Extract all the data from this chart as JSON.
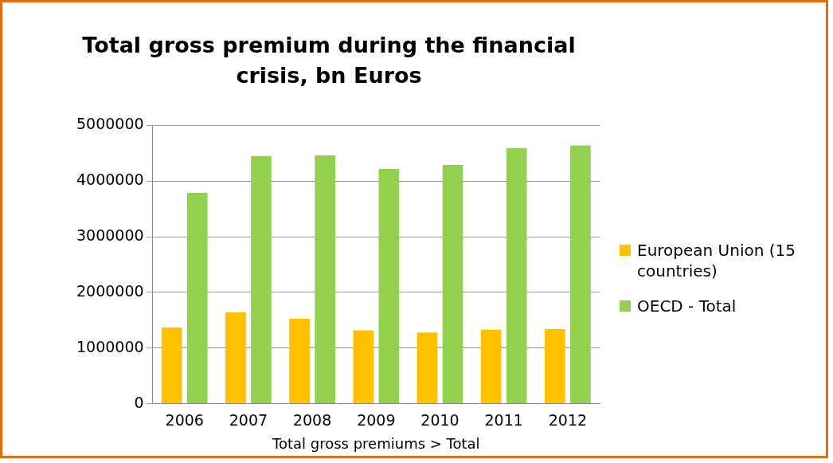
{
  "chart_data": {
    "type": "bar",
    "title": "Total gross premium during the financial crisis, bn Euros",
    "xlabel": "Total gross premiums > Total",
    "categories": [
      "2006",
      "2007",
      "2008",
      "2009",
      "2010",
      "2011",
      "2012"
    ],
    "series": [
      {
        "name": "European Union (15 countries)",
        "color": "#ffc000",
        "values": [
          1370000,
          1640000,
          1530000,
          1320000,
          1280000,
          1330000,
          1340000
        ]
      },
      {
        "name": "OECD - Total",
        "color": "#92d050",
        "values": [
          3790000,
          4450000,
          4460000,
          4220000,
          4290000,
          4590000,
          4640000
        ]
      }
    ],
    "ylim": [
      0,
      5000000
    ],
    "yticks": [
      0,
      1000000,
      2000000,
      3000000,
      4000000,
      5000000
    ],
    "grid": "y",
    "legend": "right"
  }
}
